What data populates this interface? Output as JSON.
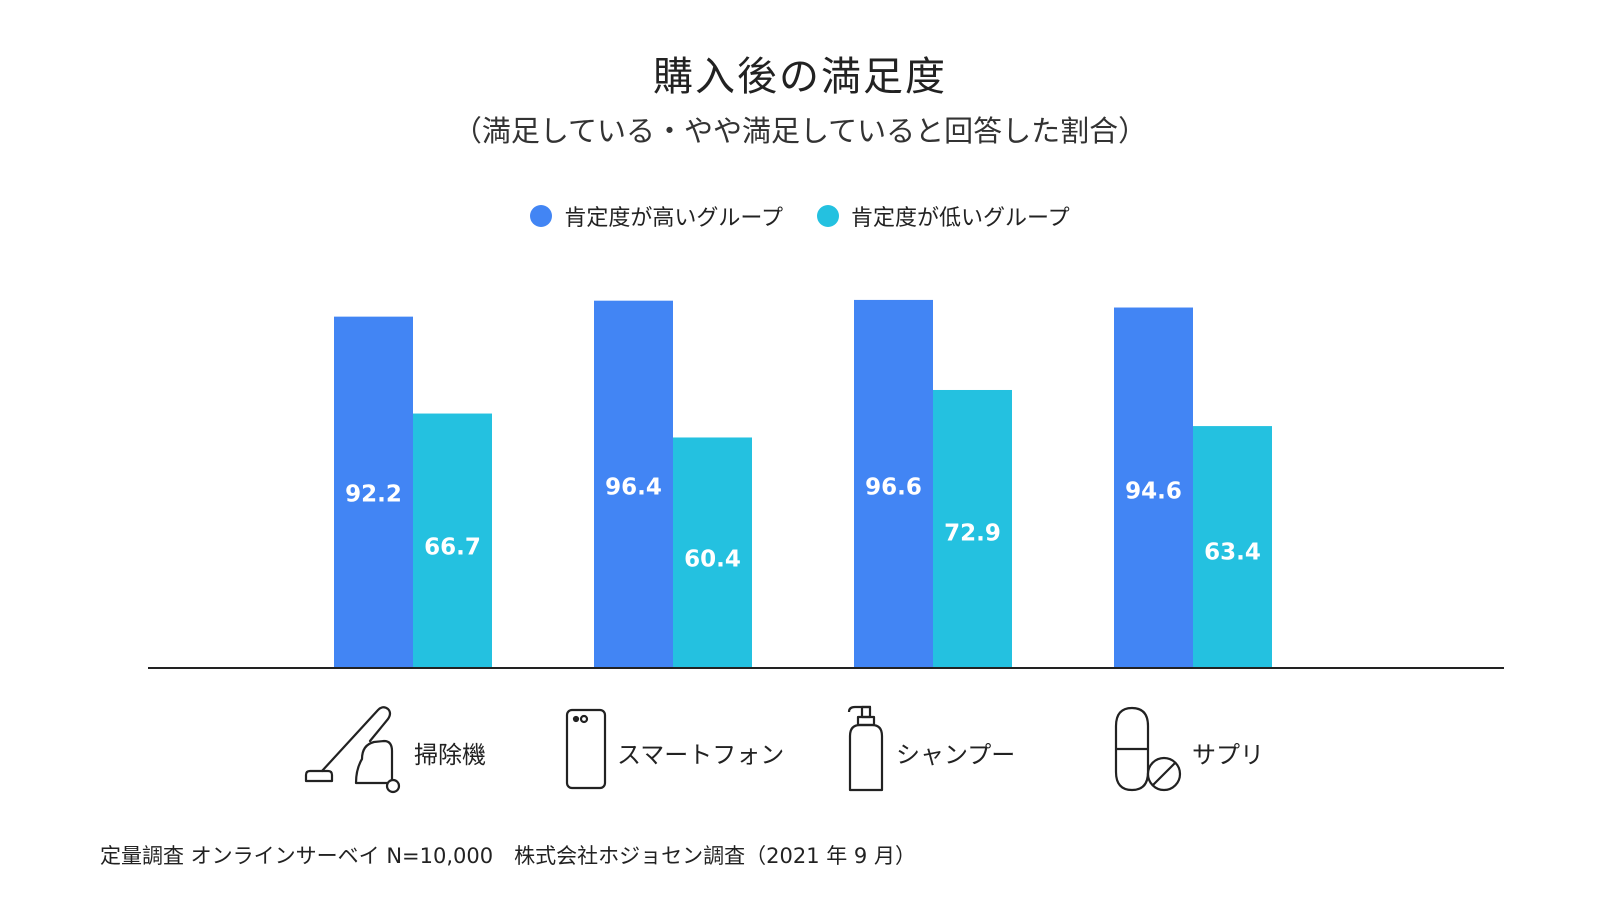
{
  "chart_data": {
    "type": "bar",
    "title": "購入後の満足度",
    "subtitle": "（満足している・やや満足していると回答した割合）",
    "categories": [
      "掃除機",
      "スマートフォン",
      "シャンプー",
      "サプリ"
    ],
    "category_icons": [
      "vacuum-cleaner-icon",
      "smartphone-icon",
      "shampoo-bottle-icon",
      "supplement-pills-icon"
    ],
    "series": [
      {
        "name": "肯定度が高いグループ",
        "color": "#4285F4",
        "values": [
          92.2,
          96.4,
          96.6,
          94.6
        ]
      },
      {
        "name": "肯定度が低いグループ",
        "color": "#24C1E0",
        "values": [
          66.7,
          60.4,
          72.9,
          63.4
        ]
      }
    ],
    "ylim": [
      0,
      100
    ],
    "grid": false,
    "legend_position": "top-center"
  },
  "footer": "定量調査 オンラインサーベイ N=10,000　株式会社ホジョセン調査（2021 年 9 月）"
}
